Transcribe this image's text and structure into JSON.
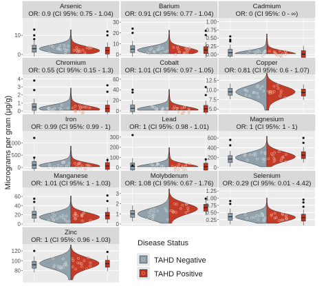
{
  "figure": {
    "ylabel": "Micrograms per gram (µg/g)",
    "legend": {
      "title": "Disease Status",
      "entries": [
        {
          "label": "TAHD Negative",
          "color": "#8B9DA8"
        },
        {
          "label": "TAHD Positive",
          "color": "#C2321E"
        }
      ]
    }
  },
  "colors": {
    "negative": "#8B9DA8",
    "positive": "#C2321E",
    "panel_bg": "#EBEBEB",
    "strip_bg": "#D9D9D9",
    "grid": "#FFFFFF"
  },
  "chart_data": [
    {
      "type": "violin",
      "title": "Arsenic",
      "subtitle": "OR: 0.9 (CI 95%: 0.75 - 1.04)",
      "yticks": [
        0,
        10
      ],
      "ylim": [
        0,
        18
      ],
      "neg": {
        "median": 3,
        "peak": 3
      },
      "pos": {
        "median": 2,
        "peak": 2
      },
      "outliers_neg": [
        13,
        10,
        8
      ],
      "outliers_pos": [
        12,
        10
      ]
    },
    {
      "type": "violin",
      "title": "Barium",
      "subtitle": "OR: 0.91 (CI 95%: 0.77 - 1.04)",
      "yticks": [
        0,
        10,
        20,
        30
      ],
      "ylim": [
        0,
        32
      ],
      "neg": {
        "median": 5,
        "peak": 4
      },
      "pos": {
        "median": 4,
        "peak": 3
      },
      "outliers_neg": [
        24,
        20
      ],
      "outliers_pos": [
        22,
        18
      ]
    },
    {
      "type": "violin",
      "title": "Cadmium",
      "subtitle": "OR: 0 (CI 95%: 0 - ∞)",
      "yticks": [
        0.0,
        0.25,
        0.5,
        0.75,
        1.0
      ],
      "ylim": [
        0,
        1.05
      ],
      "neg": {
        "median": 0.05,
        "peak": 0.02
      },
      "pos": {
        "median": 0.01,
        "peak": 0.01
      },
      "outliers_neg": [
        0.55,
        0.45,
        0.4
      ],
      "outliers_pos": []
    },
    {
      "type": "violin",
      "title": "Chromium",
      "subtitle": "OR: 0.55 (CI 95%: 0.15 - 1.3)",
      "yticks": [
        0,
        1,
        2,
        3,
        4
      ],
      "ylim": [
        0,
        4.3
      ],
      "neg": {
        "median": 0.5,
        "peak": 0.3
      },
      "pos": {
        "median": 0.3,
        "peak": 0.2
      },
      "outliers_neg": [
        3.8,
        2.6
      ],
      "outliers_pos": [
        3.2,
        2.4
      ]
    },
    {
      "type": "violin",
      "title": "Cobalt",
      "subtitle": "OR: 1.01 (CI 95%: 0.97 - 1.05)",
      "yticks": [
        0,
        20,
        40,
        60
      ],
      "ylim": [
        0,
        65
      ],
      "neg": {
        "median": 5,
        "peak": 3
      },
      "pos": {
        "median": 4,
        "peak": 2
      },
      "outliers_neg": [
        40,
        35
      ],
      "outliers_pos": [
        45,
        30
      ]
    },
    {
      "type": "violin",
      "title": "Copper",
      "subtitle": "OR: 0.81 (CI 95%: 0.6 - 1.07)",
      "yticks": [
        5.0,
        7.5,
        10.0,
        12.5
      ],
      "ylim": [
        4.5,
        13.5
      ],
      "neg": {
        "median": 9.5,
        "peak": 9.5
      },
      "pos": {
        "median": 9.3,
        "peak": 9.5
      },
      "outliers_neg": [],
      "outliers_pos": []
    },
    {
      "type": "violin",
      "title": "Iron",
      "subtitle": "OR: 0.99 (CI 95%: 0.99 - 1)",
      "yticks": [
        0,
        500,
        1000
      ],
      "ylim": [
        0,
        1400
      ],
      "neg": {
        "median": 100,
        "peak": 80
      },
      "pos": {
        "median": 60,
        "peak": 50
      },
      "outliers_neg": [
        1200,
        400
      ],
      "outliers_pos": [
        300
      ]
    },
    {
      "type": "violin",
      "title": "Lead",
      "subtitle": "OR: 1 (CI 95%: 0.98 - 1.01)",
      "yticks": [
        0,
        100,
        200,
        300
      ],
      "ylim": [
        0,
        340
      ],
      "neg": {
        "median": 10,
        "peak": 5
      },
      "pos": {
        "median": 8,
        "peak": 5
      },
      "outliers_neg": [
        320,
        20
      ],
      "outliers_pos": [
        80
      ]
    },
    {
      "type": "violin",
      "title": "Magnesium",
      "subtitle": "OR: 1 (CI 95%: 1 - 1)",
      "yticks": [
        0,
        200,
        400,
        600
      ],
      "ylim": [
        0,
        700
      ],
      "neg": {
        "median": 170,
        "peak": 200
      },
      "pos": {
        "median": 250,
        "peak": 220
      },
      "outliers_neg": [
        560,
        450
      ],
      "outliers_pos": [
        600,
        500
      ]
    },
    {
      "type": "violin",
      "title": "Manganese",
      "subtitle": "OR: 1.01 (CI 95%: 1 - 1.03)",
      "yticks": [
        0,
        20,
        40,
        60
      ],
      "ylim": [
        0,
        75
      ],
      "neg": {
        "median": 20,
        "peak": 15
      },
      "pos": {
        "median": 18,
        "peak": 15
      },
      "outliers_neg": [
        55,
        48
      ],
      "outliers_pos": [
        62,
        50
      ]
    },
    {
      "type": "violin",
      "title": "Molybdenum",
      "subtitle": "OR: 1.08 (CI 95%: 0.67 - 1.76)",
      "yticks": [
        0,
        1,
        2,
        3
      ],
      "ylim": [
        0,
        3.4
      ],
      "neg": {
        "median": 1.0,
        "peak": 1.0
      },
      "pos": {
        "median": 1.6,
        "peak": 1.5
      },
      "outliers_neg": [],
      "outliers_pos": [
        2.5
      ]
    },
    {
      "type": "violin",
      "title": "Selenium",
      "subtitle": "OR: 0.29 (CI 95%: 0.01 - 4.42)",
      "yticks": [
        0.25,
        0.5,
        0.75,
        1.0,
        1.25
      ],
      "ylim": [
        0.1,
        1.3
      ],
      "neg": {
        "median": 0.35,
        "peak": 0.35
      },
      "pos": {
        "median": 0.32,
        "peak": 0.33
      },
      "outliers_neg": [
        0.9,
        0.8
      ],
      "outliers_pos": [
        0.95,
        0.85,
        0.7
      ]
    },
    {
      "type": "violin",
      "title": "Zinc",
      "subtitle": "OR: 1 (CI 95%: 0.96 - 1.03)",
      "yticks": [
        80,
        100,
        120
      ],
      "ylim": [
        60,
        130
      ],
      "neg": {
        "median": 92,
        "peak": 95
      },
      "pos": {
        "median": 94,
        "peak": 95
      },
      "outliers_neg": [
        120
      ],
      "outliers_pos": [
        118
      ]
    }
  ]
}
